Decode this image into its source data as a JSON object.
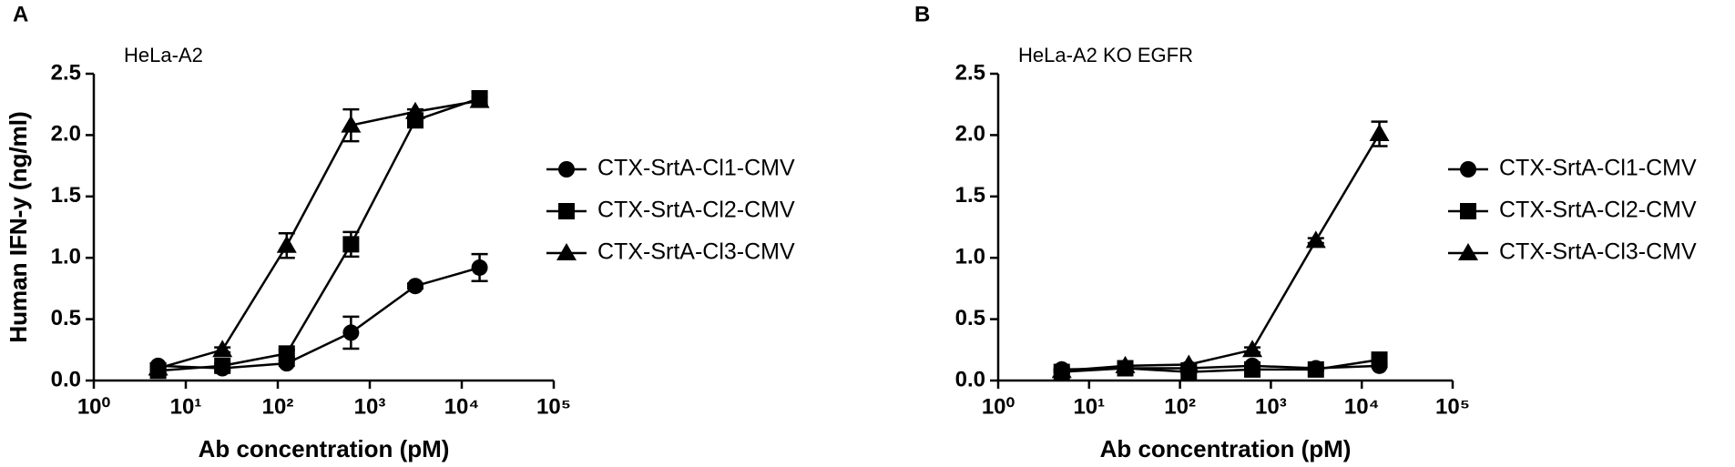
{
  "chart_data": [
    {
      "type": "line",
      "panel_label": "A",
      "title": "HeLa-A2",
      "x_label": "Ab concentration (pM)",
      "y_label": "Human IFN-y (ng/ml)",
      "x": [
        5,
        25,
        125,
        625,
        3125,
        15625
      ],
      "xscale": "log",
      "xlim": [
        1,
        100000
      ],
      "xticks": [
        {
          "value": 1,
          "label": "10⁰"
        },
        {
          "value": 10,
          "label": "10¹"
        },
        {
          "value": 100,
          "label": "10²"
        },
        {
          "value": 1000,
          "label": "10³"
        },
        {
          "value": 10000,
          "label": "10⁴"
        },
        {
          "value": 100000,
          "label": "10⁵"
        }
      ],
      "ylim": [
        0,
        2.5
      ],
      "yticks": [
        {
          "value": 0,
          "label": "0.0"
        },
        0.5,
        {
          "value": 1,
          "label": "1.0"
        },
        1.5,
        {
          "value": 2,
          "label": "2.0"
        },
        2.5
      ],
      "legend": "right",
      "series": [
        {
          "name": "CTX-SrtA-Cl1-CMV",
          "color": "#000000",
          "marker": "circle",
          "values": [
            0.12,
            0.1,
            0.14,
            0.39,
            0.77,
            0.92
          ],
          "errors": [
            0.02,
            0.02,
            0.02,
            0.13,
            0.02,
            0.11
          ]
        },
        {
          "name": "CTX-SrtA-Cl2-CMV",
          "color": "#000000",
          "marker": "square",
          "values": [
            0.08,
            0.12,
            0.22,
            1.11,
            2.12,
            2.3
          ],
          "errors": [
            0.01,
            0.02,
            0.03,
            0.1,
            0.03,
            0.05
          ]
        },
        {
          "name": "CTX-SrtA-Cl3-CMV",
          "color": "#000000",
          "marker": "triangle",
          "values": [
            0.1,
            0.25,
            1.1,
            2.08,
            2.19,
            2.28
          ],
          "errors": [
            0.01,
            0.02,
            0.1,
            0.13,
            0.02,
            0.03
          ]
        }
      ]
    },
    {
      "type": "line",
      "panel_label": "B",
      "title": "HeLa-A2 KO EGFR",
      "x_label": "Ab concentration (pM)",
      "y_label": "Human IFN-y (ng/ml)",
      "x": [
        5,
        25,
        125,
        625,
        3125,
        15625
      ],
      "xscale": "log",
      "xlim": [
        1,
        100000
      ],
      "xticks": [
        {
          "value": 1,
          "label": "10⁰"
        },
        {
          "value": 10,
          "label": "10¹"
        },
        {
          "value": 100,
          "label": "10²"
        },
        {
          "value": 1000,
          "label": "10³"
        },
        {
          "value": 10000,
          "label": "10⁴"
        },
        {
          "value": 100000,
          "label": "10⁵"
        }
      ],
      "ylim": [
        0,
        2.5
      ],
      "yticks": [
        {
          "value": 0,
          "label": "0.0"
        },
        0.5,
        {
          "value": 1,
          "label": "1.0"
        },
        1.5,
        {
          "value": 2,
          "label": "2.0"
        },
        2.5
      ],
      "legend": "right",
      "series": [
        {
          "name": "CTX-SrtA-Cl1-CMV",
          "color": "#000000",
          "marker": "circle",
          "values": [
            0.09,
            0.1,
            0.1,
            0.12,
            0.1,
            0.12
          ],
          "errors": [
            0.01,
            0.01,
            0.01,
            0.01,
            0.01,
            0.01
          ]
        },
        {
          "name": "CTX-SrtA-Cl2-CMV",
          "color": "#000000",
          "marker": "square",
          "values": [
            0.07,
            0.1,
            0.07,
            0.09,
            0.09,
            0.17
          ],
          "errors": [
            0.01,
            0.01,
            0.01,
            0.01,
            0.01,
            0.02
          ]
        },
        {
          "name": "CTX-SrtA-Cl3-CMV",
          "color": "#000000",
          "marker": "triangle",
          "values": [
            0.08,
            0.12,
            0.13,
            0.25,
            1.14,
            2.01
          ],
          "errors": [
            0.01,
            0.01,
            0.01,
            0.02,
            0.02,
            0.1
          ]
        }
      ]
    }
  ]
}
